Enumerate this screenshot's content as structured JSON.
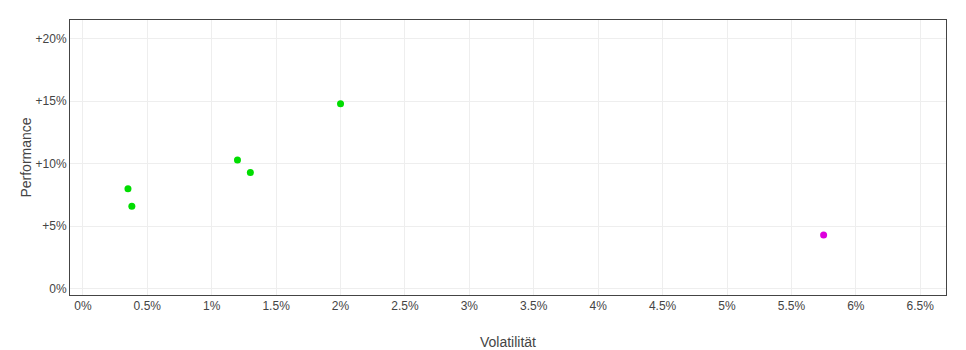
{
  "chart_data": {
    "type": "scatter",
    "xlabel": "Volatilität",
    "ylabel": "Performance",
    "marker": "circle",
    "grid": true,
    "xlim": [
      -0.001,
      0.067
    ],
    "ylim": [
      -0.005,
      0.215
    ],
    "xticks": [
      {
        "value": 0.0,
        "label": "0%"
      },
      {
        "value": 0.005,
        "label": "0.5%"
      },
      {
        "value": 0.01,
        "label": "1%"
      },
      {
        "value": 0.015,
        "label": "1.5%"
      },
      {
        "value": 0.02,
        "label": "2%"
      },
      {
        "value": 0.025,
        "label": "2.5%"
      },
      {
        "value": 0.03,
        "label": "3%"
      },
      {
        "value": 0.035,
        "label": "3.5%"
      },
      {
        "value": 0.04,
        "label": "4%"
      },
      {
        "value": 0.045,
        "label": "4.5%"
      },
      {
        "value": 0.05,
        "label": "5%"
      },
      {
        "value": 0.055,
        "label": "5.5%"
      },
      {
        "value": 0.06,
        "label": "6%"
      },
      {
        "value": 0.065,
        "label": "6.5%"
      }
    ],
    "yticks": [
      {
        "value": 0.0,
        "label": "0%"
      },
      {
        "value": 0.05,
        "label": "+5%"
      },
      {
        "value": 0.1,
        "label": "+10%"
      },
      {
        "value": 0.15,
        "label": "+15%"
      },
      {
        "value": 0.2,
        "label": "+20%"
      }
    ],
    "series": [
      {
        "color": "#00dd00",
        "x": [
          0.0035,
          0.0038,
          0.012,
          0.013,
          0.02
        ],
        "values": [
          0.08,
          0.066,
          0.103,
          0.093,
          0.148
        ]
      },
      {
        "color": "#dd00dd",
        "x": [
          0.0575
        ],
        "values": [
          0.043
        ]
      }
    ]
  }
}
